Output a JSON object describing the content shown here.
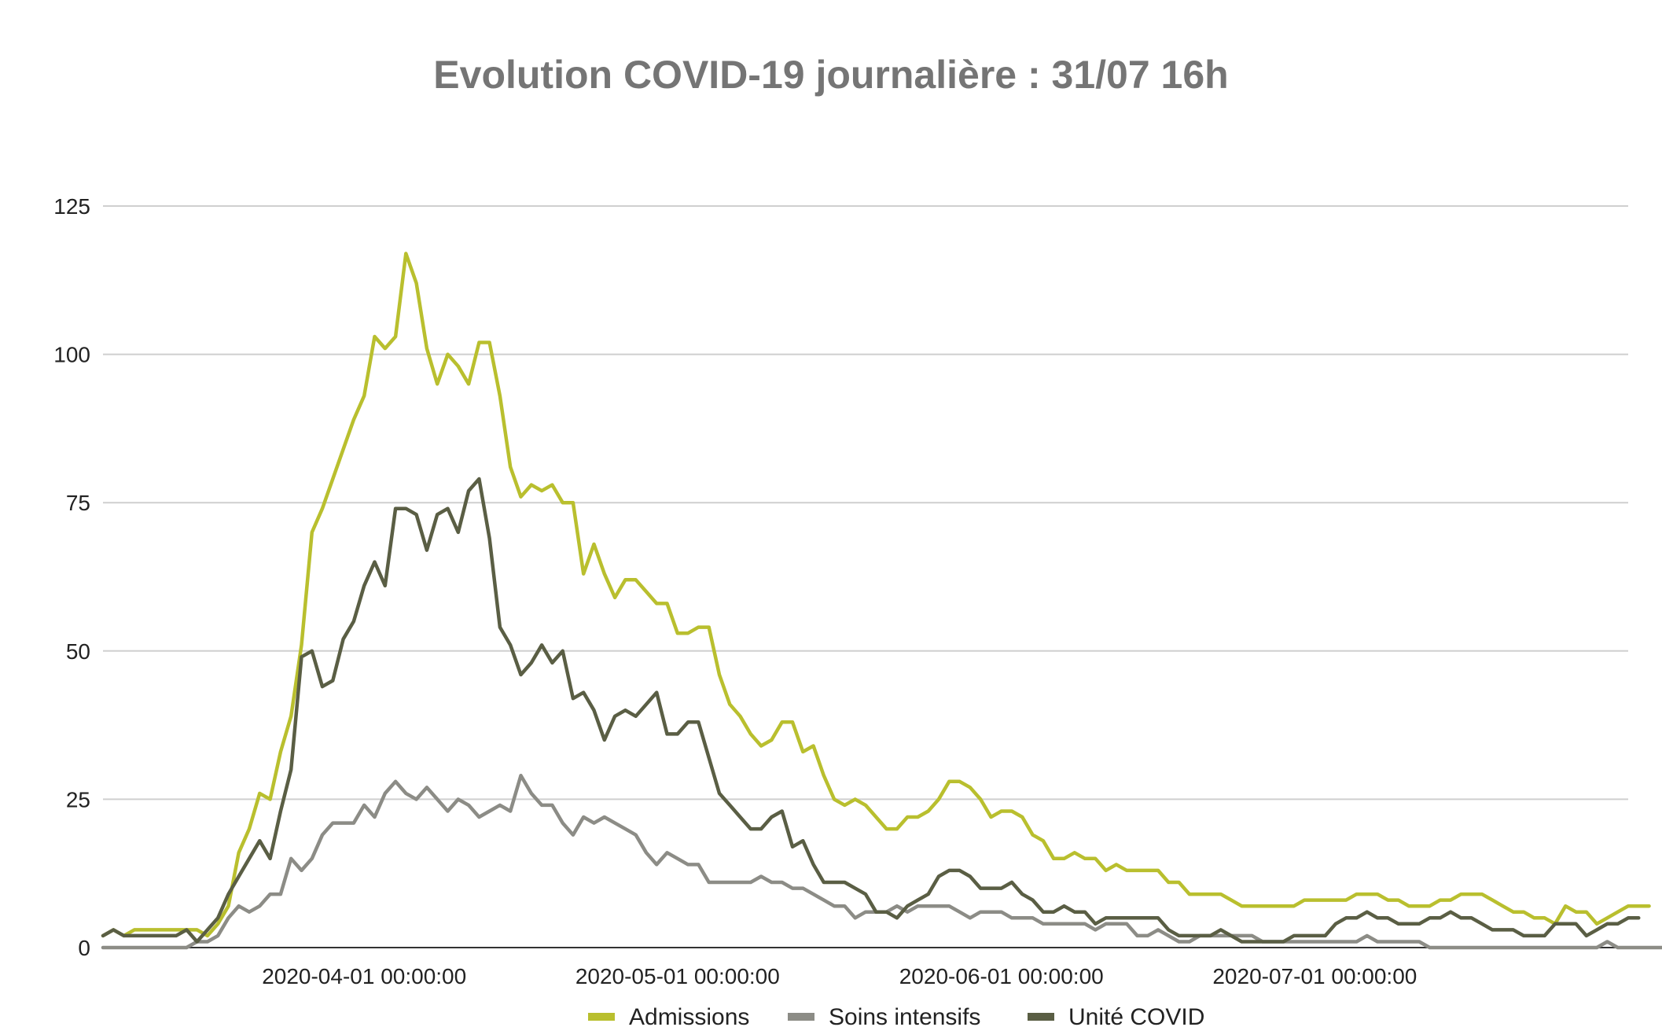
{
  "chart_data": {
    "type": "line",
    "title": "Evolution COVID-19 journalière : 31/07 16h",
    "xlabel": "",
    "ylabel": "",
    "x_start": "2020-03-07",
    "x_end": "2020-07-31",
    "x_ticks": [
      {
        "date": "2020-04-01",
        "label": "2020-04-01 00:00:00"
      },
      {
        "date": "2020-05-01",
        "label": "2020-05-01 00:00:00"
      },
      {
        "date": "2020-06-01",
        "label": "2020-06-01 00:00:00"
      },
      {
        "date": "2020-07-01",
        "label": "2020-07-01 00:00:00"
      }
    ],
    "ylim": [
      0,
      125
    ],
    "yticks": [
      0,
      25,
      50,
      75,
      100,
      125
    ],
    "grid": true,
    "legend": "bottom",
    "series": [
      {
        "name": "Admissions",
        "color": "#b9bf2e",
        "values": [
          2,
          3,
          2,
          3,
          3,
          3,
          3,
          3,
          3,
          3,
          2,
          4,
          7,
          16,
          20,
          26,
          25,
          33,
          39,
          51,
          70,
          74,
          79,
          84,
          89,
          93,
          103,
          101,
          103,
          117,
          112,
          101,
          95,
          100,
          98,
          95,
          102,
          102,
          93,
          81,
          76,
          78,
          77,
          78,
          75,
          75,
          63,
          68,
          63,
          59,
          62,
          62,
          60,
          58,
          58,
          53,
          53,
          54,
          54,
          46,
          41,
          39,
          36,
          34,
          35,
          38,
          38,
          33,
          34,
          29,
          25,
          24,
          25,
          24,
          22,
          20,
          20,
          22,
          22,
          23,
          25,
          28,
          28,
          27,
          25,
          22,
          23,
          23,
          22,
          19,
          18,
          15,
          15,
          16,
          15,
          15,
          13,
          14,
          13,
          13,
          13,
          13,
          11,
          11,
          9,
          9,
          9,
          9,
          8,
          7,
          7,
          7,
          7,
          7,
          7,
          8,
          8,
          8,
          8,
          8,
          9,
          9,
          9,
          8,
          8,
          7,
          7,
          7,
          8,
          8,
          9,
          9,
          9,
          8,
          7,
          6,
          6,
          5,
          5,
          4,
          7,
          6,
          6,
          4,
          5,
          6,
          7,
          7,
          7
        ]
      },
      {
        "name": "Soins intensifs",
        "color": "#8c8c86",
        "values": [
          0,
          0,
          0,
          0,
          0,
          0,
          0,
          0,
          0,
          1,
          1,
          2,
          5,
          7,
          6,
          7,
          9,
          9,
          15,
          13,
          15,
          19,
          21,
          21,
          21,
          24,
          22,
          26,
          28,
          26,
          25,
          27,
          25,
          23,
          25,
          24,
          22,
          23,
          24,
          23,
          29,
          26,
          24,
          24,
          21,
          19,
          22,
          21,
          22,
          21,
          20,
          19,
          16,
          14,
          16,
          15,
          14,
          14,
          11,
          11,
          11,
          11,
          11,
          12,
          11,
          11,
          10,
          10,
          9,
          8,
          7,
          7,
          5,
          6,
          6,
          6,
          7,
          6,
          7,
          7,
          7,
          7,
          6,
          5,
          6,
          6,
          6,
          5,
          5,
          5,
          4,
          4,
          4,
          4,
          4,
          3,
          4,
          4,
          4,
          2,
          2,
          3,
          2,
          1,
          1,
          2,
          2,
          2,
          2,
          2,
          2,
          1,
          1,
          1,
          1,
          1,
          1,
          1,
          1,
          1,
          1,
          2,
          1,
          1,
          1,
          1,
          1,
          0,
          0,
          0,
          0,
          0,
          0,
          0,
          0,
          0,
          0,
          0,
          0,
          0,
          0,
          0,
          0,
          0,
          1,
          0,
          0,
          0,
          0,
          0,
          0,
          0,
          0
        ]
      },
      {
        "name": "Unité COVID",
        "color": "#5a5e44",
        "values": [
          2,
          3,
          2,
          2,
          2,
          2,
          2,
          2,
          3,
          1,
          3,
          5,
          9,
          12,
          15,
          18,
          15,
          23,
          30,
          49,
          50,
          44,
          45,
          52,
          55,
          61,
          65,
          61,
          74,
          74,
          73,
          67,
          73,
          74,
          70,
          77,
          79,
          69,
          54,
          51,
          46,
          48,
          51,
          48,
          50,
          42,
          43,
          40,
          35,
          39,
          40,
          39,
          41,
          43,
          36,
          36,
          38,
          38,
          32,
          26,
          24,
          22,
          20,
          20,
          22,
          23,
          17,
          18,
          14,
          11,
          11,
          11,
          10,
          9,
          6,
          6,
          5,
          7,
          8,
          9,
          12,
          13,
          13,
          12,
          10,
          10,
          10,
          11,
          9,
          8,
          6,
          6,
          7,
          6,
          6,
          4,
          5,
          5,
          5,
          5,
          5,
          5,
          3,
          2,
          2,
          2,
          2,
          3,
          2,
          1,
          1,
          1,
          1,
          1,
          2,
          2,
          2,
          2,
          4,
          5,
          5,
          6,
          5,
          5,
          4,
          4,
          4,
          5,
          5,
          6,
          5,
          5,
          4,
          3,
          3,
          3,
          2,
          2,
          2,
          4,
          4,
          4,
          2,
          3,
          4,
          4,
          5,
          5
        ]
      }
    ]
  }
}
